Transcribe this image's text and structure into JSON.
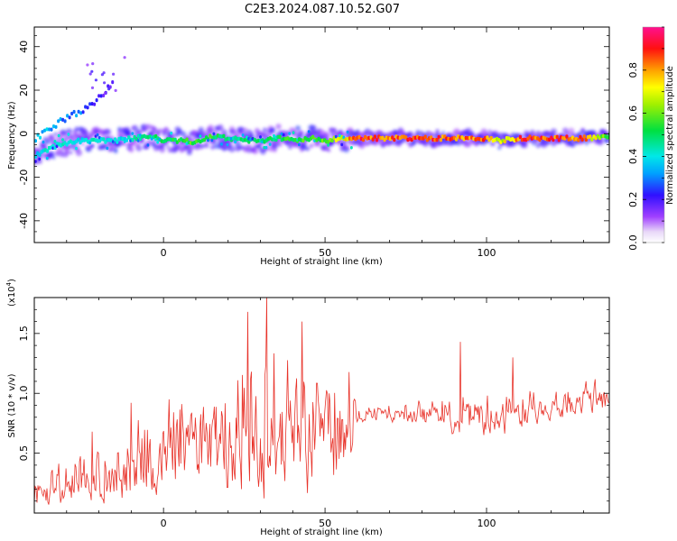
{
  "title": "C2E3.2024.087.10.52.G07",
  "chart_data": [
    {
      "type": "heatmap",
      "xlabel": "Height of straight line (km)",
      "ylabel": "Frequency (Hz)",
      "xlim": [
        -40,
        138
      ],
      "ylim": [
        -50,
        49
      ],
      "x_ticks": [
        0,
        50,
        100
      ],
      "y_ticks": [
        -40,
        -20,
        0,
        20,
        40
      ],
      "colorbar": {
        "label": "Normalized spectral amplitude",
        "range": [
          0.0,
          1.0
        ],
        "ticks": [
          0.0,
          0.2,
          0.4,
          0.6,
          0.8
        ],
        "colormap": "rainbow (white-purple-blue-cyan-green-yellow-orange-red-magenta)"
      },
      "ridge": {
        "name": "dominant frequency track",
        "x": [
          -40,
          -35,
          -30,
          -25,
          -20,
          -15,
          -10,
          -5,
          0,
          5,
          10,
          15,
          20,
          25,
          30,
          35,
          40,
          45,
          50,
          55,
          60,
          70,
          80,
          90,
          100,
          104,
          110,
          120,
          130,
          138
        ],
        "y": [
          -10,
          -6,
          -4,
          -3,
          -3,
          -3,
          -2,
          -1,
          -3,
          -3,
          -4,
          -1,
          -2,
          -3,
          -3,
          -2,
          -3,
          -2,
          -3,
          -2,
          -2,
          -2,
          -2,
          -2,
          -2,
          -3,
          -2,
          -2,
          -2,
          -1
        ],
        "amplitude": [
          0.4,
          0.45,
          0.4,
          0.4,
          0.45,
          0.4,
          0.45,
          0.5,
          0.55,
          0.55,
          0.6,
          0.55,
          0.5,
          0.5,
          0.5,
          0.55,
          0.55,
          0.6,
          0.6,
          0.75,
          0.9,
          0.9,
          0.9,
          0.9,
          0.85,
          0.7,
          0.9,
          0.9,
          0.85,
          0.55
        ]
      },
      "secondary_branch": {
        "x": [
          -40,
          -36,
          -32,
          -28,
          -24,
          -20,
          -16
        ],
        "y": [
          -2,
          2,
          6,
          9,
          12,
          17,
          24
        ],
        "amplitude": [
          0.35,
          0.35,
          0.3,
          0.3,
          0.25,
          0.2,
          0.15
        ]
      }
    },
    {
      "type": "line",
      "xlabel": "Height of straight line (km)",
      "ylabel": "SNR (10 * v/v)",
      "y_scale_label": "(x10",
      "y_scale_exp": "4",
      "y_scale_close": ")",
      "xlim": [
        -40,
        138
      ],
      "ylim": [
        0,
        1.8
      ],
      "x_ticks": [
        0,
        50,
        100
      ],
      "y_ticks": [
        0.5,
        1.0,
        1.5
      ],
      "y_tick_labels": [
        "0.5",
        "1.0",
        "1.5"
      ],
      "color": "#e8332a",
      "envelope": {
        "x": [
          -40,
          -30,
          -25,
          -20,
          -15,
          -10,
          -5,
          0,
          5,
          10,
          15,
          20,
          25,
          30,
          35,
          40,
          45,
          50,
          55,
          58,
          60,
          65,
          70,
          75,
          80,
          85,
          90,
          95,
          100,
          105,
          110,
          115,
          120,
          125,
          130,
          138
        ],
        "base": [
          0.15,
          0.2,
          0.25,
          0.25,
          0.3,
          0.35,
          0.4,
          0.45,
          0.5,
          0.55,
          0.55,
          0.6,
          0.65,
          0.65,
          0.65,
          0.6,
          0.6,
          0.6,
          0.6,
          0.65,
          0.8,
          0.82,
          0.82,
          0.82,
          0.83,
          0.82,
          0.8,
          0.78,
          0.78,
          0.8,
          0.82,
          0.85,
          0.88,
          0.9,
          0.9,
          0.92
        ],
        "spread": [
          0.2,
          0.25,
          0.3,
          0.35,
          0.35,
          0.45,
          0.45,
          0.45,
          0.55,
          0.6,
          0.65,
          0.75,
          0.85,
          0.9,
          0.85,
          0.8,
          0.8,
          0.75,
          0.7,
          0.6,
          0.08,
          0.1,
          0.1,
          0.12,
          0.18,
          0.2,
          0.25,
          0.28,
          0.3,
          0.28,
          0.25,
          0.2,
          0.18,
          0.18,
          0.18,
          0.2
        ]
      },
      "peaks": [
        {
          "x": 26,
          "y": 1.68
        },
        {
          "x": 32,
          "y": 1.81
        },
        {
          "x": 43,
          "y": 1.6
        },
        {
          "x": 92,
          "y": 1.43
        },
        {
          "x": 108,
          "y": 1.3
        },
        {
          "x": -10,
          "y": 0.92
        },
        {
          "x": -22,
          "y": 0.68
        }
      ]
    }
  ]
}
